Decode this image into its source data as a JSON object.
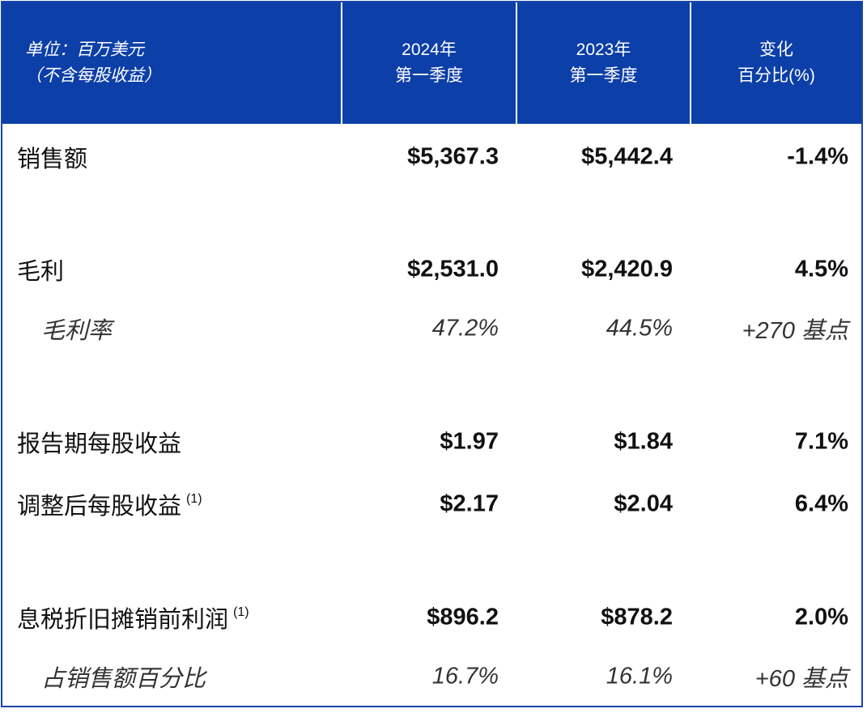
{
  "header": {
    "columns": [
      {
        "lines": [
          "单位：百万美元",
          "（不含每股收益）"
        ]
      },
      {
        "lines": [
          "2024年",
          "第一季度"
        ]
      },
      {
        "lines": [
          "2023年",
          "第一季度"
        ]
      },
      {
        "lines": [
          "变化",
          "百分比(%)"
        ]
      }
    ]
  },
  "table": {
    "rows": [
      {
        "label": "销售额",
        "values": [
          "$5,367.3",
          "$5,442.4",
          "-1.4%"
        ]
      },
      {
        "label": "毛利",
        "values": [
          "$2,531.0",
          "$2,420.9",
          "4.5%"
        ]
      },
      {
        "label": "毛利率",
        "values": [
          "47.2%",
          "44.5%",
          "+270 基点"
        ],
        "italic": true
      },
      {
        "label": "报告期每股收益",
        "values": [
          "$1.97",
          "$1.84",
          "7.1%"
        ]
      },
      {
        "label": "调整后每股收益",
        "note": "(1)",
        "values": [
          "$2.17",
          "$2.04",
          "6.4%"
        ]
      },
      {
        "label": "息税折旧摊销前利润",
        "note": "(1)",
        "values": [
          "$896.2",
          "$878.2",
          "2.0%"
        ]
      },
      {
        "label": "占销售额百分比",
        "values": [
          "16.7%",
          "16.1%",
          "+60 基点"
        ],
        "italic": true
      }
    ]
  }
}
